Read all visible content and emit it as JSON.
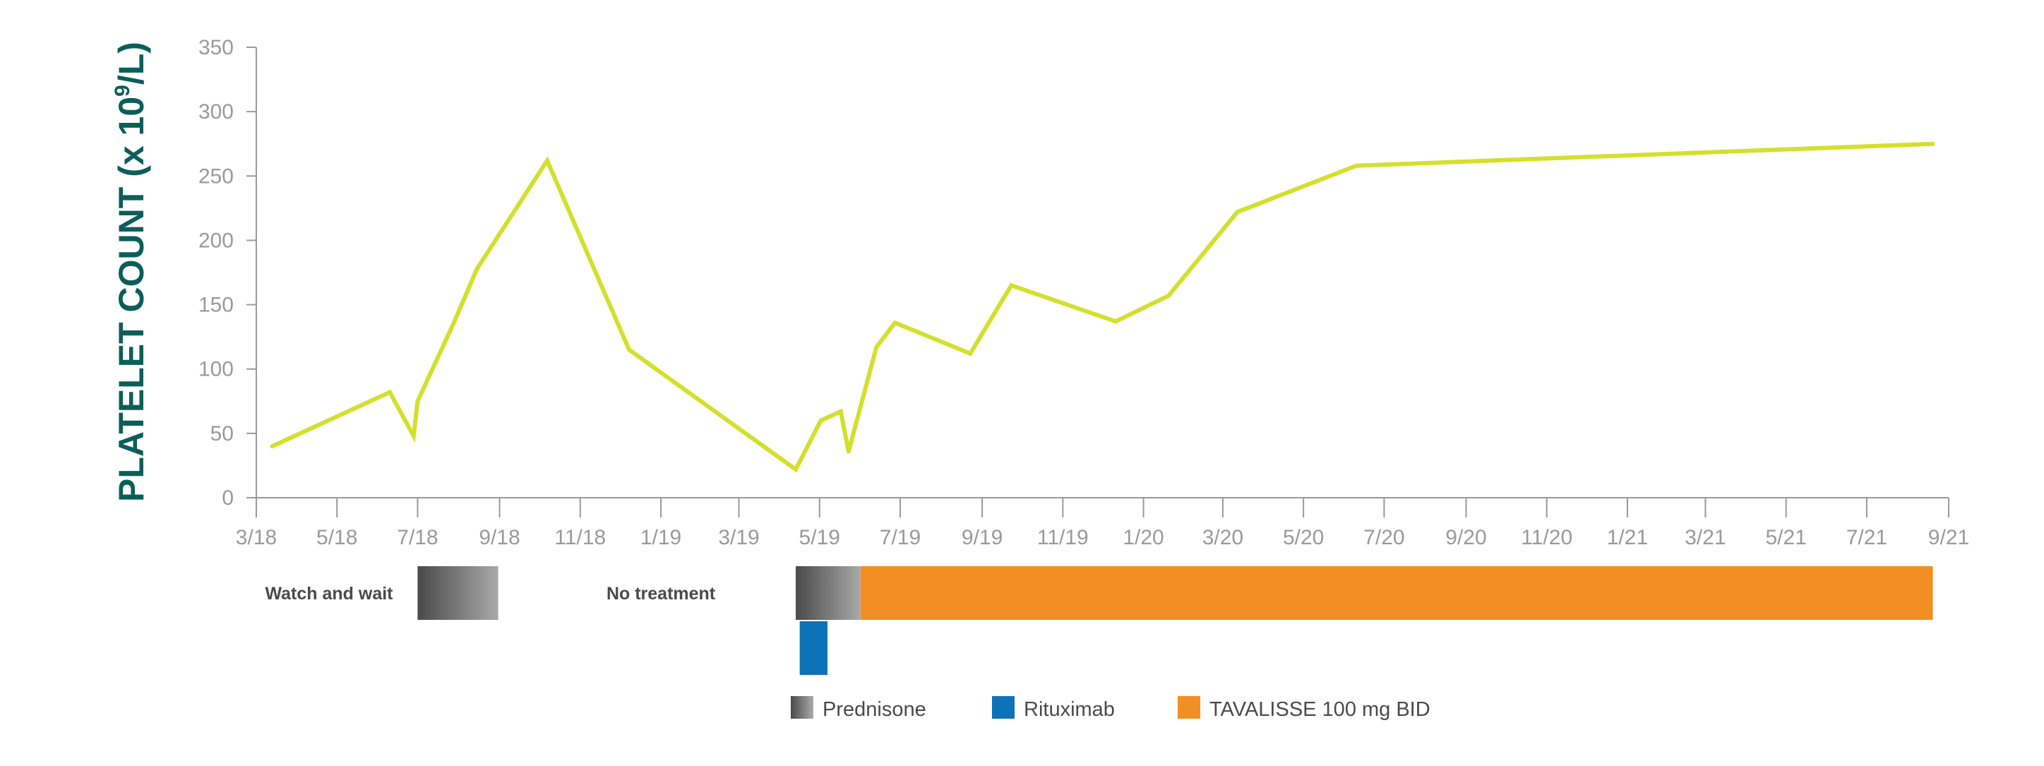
{
  "colors": {
    "line": "#d3e02c",
    "axis": "#9a9a9a",
    "ylabel": "#0c5e5a",
    "prednisone_dark": "#4a4a4a",
    "prednisone_light": "#a9a9a9",
    "rituximab": "#0e72b8",
    "tavalisse": "#f18f24"
  },
  "chart_data": {
    "type": "line",
    "title": "",
    "ylabel_main": "PLATELET COUNT (x 10",
    "ylabel_sup": "9",
    "ylabel_end": "/L)",
    "xlabel": "",
    "ylim": [
      0,
      350
    ],
    "yticks": [
      0,
      50,
      100,
      150,
      200,
      250,
      300,
      350
    ],
    "xlim": [
      "2018-03-01",
      "2021-09-01"
    ],
    "xticks": [
      {
        "date": "2018-03-01",
        "label": "3/18"
      },
      {
        "date": "2018-05-01",
        "label": "5/18"
      },
      {
        "date": "2018-07-01",
        "label": "7/18"
      },
      {
        "date": "2018-09-01",
        "label": "9/18"
      },
      {
        "date": "2018-11-01",
        "label": "11/18"
      },
      {
        "date": "2019-01-01",
        "label": "1/19"
      },
      {
        "date": "2019-03-01",
        "label": "3/19"
      },
      {
        "date": "2019-05-01",
        "label": "5/19"
      },
      {
        "date": "2019-07-01",
        "label": "7/19"
      },
      {
        "date": "2019-09-01",
        "label": "9/19"
      },
      {
        "date": "2019-11-01",
        "label": "11/19"
      },
      {
        "date": "2020-01-01",
        "label": "1/20"
      },
      {
        "date": "2020-03-01",
        "label": "3/20"
      },
      {
        "date": "2020-05-01",
        "label": "5/20"
      },
      {
        "date": "2020-07-01",
        "label": "7/20"
      },
      {
        "date": "2020-09-01",
        "label": "9/20"
      },
      {
        "date": "2020-11-01",
        "label": "11/20"
      },
      {
        "date": "2021-01-01",
        "label": "1/21"
      },
      {
        "date": "2021-03-01",
        "label": "3/21"
      },
      {
        "date": "2021-05-01",
        "label": "5/21"
      },
      {
        "date": "2021-07-01",
        "label": "7/21"
      },
      {
        "date": "2021-09-01",
        "label": "9/21"
      }
    ],
    "grid": false,
    "series": [
      {
        "points": [
          {
            "x": "2018-03-13",
            "y": 40
          },
          {
            "x": "2018-06-10",
            "y": 82
          },
          {
            "x": "2018-06-28",
            "y": 48
          },
          {
            "x": "2018-07-01",
            "y": 75
          },
          {
            "x": "2018-07-28",
            "y": 135
          },
          {
            "x": "2018-08-15",
            "y": 178
          },
          {
            "x": "2018-10-07",
            "y": 262
          },
          {
            "x": "2018-12-08",
            "y": 115
          },
          {
            "x": "2019-04-13",
            "y": 22
          },
          {
            "x": "2019-05-02",
            "y": 60
          },
          {
            "x": "2019-05-17",
            "y": 67
          },
          {
            "x": "2019-05-23",
            "y": 36
          },
          {
            "x": "2019-06-13",
            "y": 117
          },
          {
            "x": "2019-06-27",
            "y": 136
          },
          {
            "x": "2019-08-23",
            "y": 112
          },
          {
            "x": "2019-09-23",
            "y": 165
          },
          {
            "x": "2019-12-11",
            "y": 137
          },
          {
            "x": "2020-01-20",
            "y": 157
          },
          {
            "x": "2020-03-12",
            "y": 222
          },
          {
            "x": "2020-06-10",
            "y": 258
          },
          {
            "x": "2021-08-20",
            "y": 275
          }
        ]
      }
    ],
    "treatment_bars": [
      {
        "name": "Watch and wait",
        "type": "label",
        "row": 0,
        "at": "2018-04-25"
      },
      {
        "name": "Prednisone",
        "row": 0,
        "start": "2018-07-01",
        "end": "2018-08-31",
        "style": "gradient"
      },
      {
        "name": "No treatment",
        "type": "label",
        "row": 0,
        "at": "2019-01-01"
      },
      {
        "name": "Prednisone",
        "row": 0,
        "start": "2019-04-13",
        "end": "2019-06-01",
        "style": "gradient"
      },
      {
        "name": "TAVALISSE 100 mg BID",
        "row": 0,
        "start": "2019-06-01",
        "end": "2021-08-20",
        "style": "orange"
      },
      {
        "name": "Rituximab",
        "row": 1,
        "start": "2019-04-16",
        "end": "2019-05-07",
        "style": "blue"
      }
    ],
    "legend": {
      "placement": "bottom-center",
      "items": [
        {
          "label": "Prednisone",
          "style": "gradient"
        },
        {
          "label": "Rituximab",
          "style": "blue"
        },
        {
          "label": "TAVALISSE 100 mg BID",
          "style": "orange"
        }
      ]
    }
  }
}
